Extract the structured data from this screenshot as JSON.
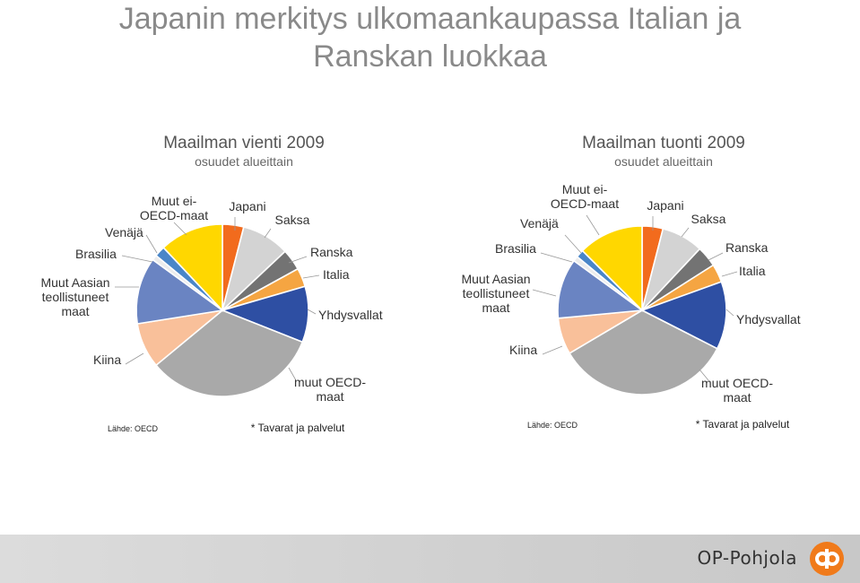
{
  "page": {
    "title_line1": "Japanin merkitys ulkomaankaupassa Italian ja",
    "title_line2": "Ranskan luokkaa",
    "brand": "OP-Pohjola"
  },
  "chart_data": [
    {
      "type": "pie",
      "title": "Maailman vienti 2009",
      "subtitle": "osuudet alueittain",
      "unit": "%",
      "source": "Lähde: OECD",
      "note": "* Tavarat ja palvelut",
      "slices": [
        {
          "label": "Japani",
          "value": 4.0,
          "color": "#f26b1d"
        },
        {
          "label": "Saksa",
          "value": 9.0,
          "color": "#d3d3d3"
        },
        {
          "label": "Ranska",
          "value": 4.0,
          "color": "#737373"
        },
        {
          "label": "Italia",
          "value": 3.5,
          "color": "#f5a542"
        },
        {
          "label": "Yhdysvallat",
          "value": 10.5,
          "color": "#2e4fa3"
        },
        {
          "label": "muut OECD-maat",
          "value": 33.0,
          "color": "#a9a9a9"
        },
        {
          "label": "Kiina",
          "value": 8.5,
          "color": "#f9c09a"
        },
        {
          "label": "Muut Aasian teollistuneet maat",
          "value": 12.5,
          "color": "#6a84c2"
        },
        {
          "label": "Brasilia",
          "value": 1.0,
          "color": "#ececec"
        },
        {
          "label": "Venäjä",
          "value": 2.0,
          "color": "#4a86c8"
        },
        {
          "label": "Muut ei-OECD-maat",
          "value": 12.0,
          "color": "#ffd700"
        }
      ]
    },
    {
      "type": "pie",
      "title": "Maailman tuonti 2009",
      "subtitle": "osuudet alueittain",
      "unit": "%",
      "source": "Lähde: OECD",
      "note": "* Tavarat ja palvelut",
      "slices": [
        {
          "label": "Japani",
          "value": 4.0,
          "color": "#f26b1d"
        },
        {
          "label": "Saksa",
          "value": 8.0,
          "color": "#d3d3d3"
        },
        {
          "label": "Ranska",
          "value": 4.0,
          "color": "#737373"
        },
        {
          "label": "Italia",
          "value": 3.5,
          "color": "#f5a542"
        },
        {
          "label": "Yhdysvallat",
          "value": 13.0,
          "color": "#2e4fa3"
        },
        {
          "label": "muut OECD-maat",
          "value": 34.0,
          "color": "#a9a9a9"
        },
        {
          "label": "Kiina",
          "value": 7.0,
          "color": "#f9c09a"
        },
        {
          "label": "Muut Aasian teollistuneet maat",
          "value": 11.5,
          "color": "#6a84c2"
        },
        {
          "label": "Brasilia",
          "value": 1.0,
          "color": "#ececec"
        },
        {
          "label": "Venäjä",
          "value": 1.5,
          "color": "#4a86c8"
        },
        {
          "label": "Muut ei-OECD-maat",
          "value": 12.5,
          "color": "#ffd700"
        }
      ]
    }
  ]
}
